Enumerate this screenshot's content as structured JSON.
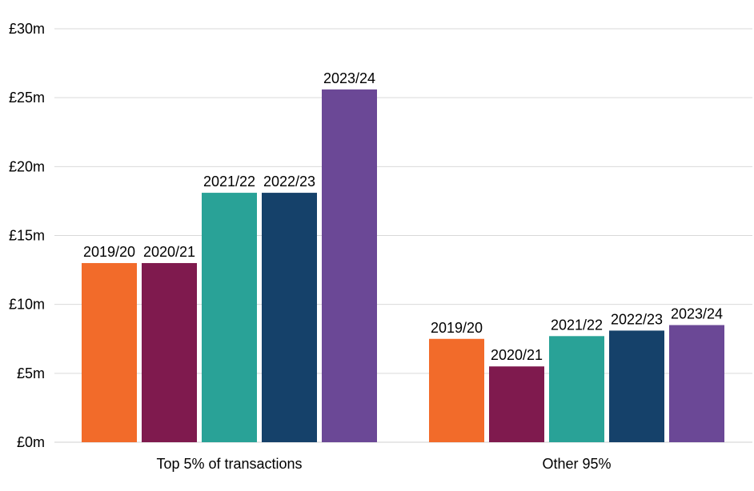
{
  "chart_data": {
    "type": "bar",
    "title": "",
    "xlabel": "",
    "ylabel": "",
    "ylim": [
      0,
      30
    ],
    "y_ticks": [
      0,
      5,
      10,
      15,
      20,
      25,
      30
    ],
    "y_tick_labels": [
      "£0m",
      "£5m",
      "£10m",
      "£15m",
      "£20m",
      "£25m",
      "£30m"
    ],
    "grid": true,
    "legend": "none",
    "categories": [
      "Top 5% of transactions",
      "Other 95%"
    ],
    "series": [
      {
        "name": "2019/20",
        "color": "#f26b2a",
        "values": [
          13.0,
          7.5
        ]
      },
      {
        "name": "2020/21",
        "color": "#7f1a4e",
        "values": [
          13.0,
          5.5
        ]
      },
      {
        "name": "2021/22",
        "color": "#29a297",
        "values": [
          18.1,
          7.7
        ]
      },
      {
        "name": "2022/23",
        "color": "#15416a",
        "values": [
          18.1,
          8.1
        ]
      },
      {
        "name": "2023/24",
        "color": "#6b4896",
        "values": [
          25.6,
          8.5
        ]
      }
    ]
  }
}
